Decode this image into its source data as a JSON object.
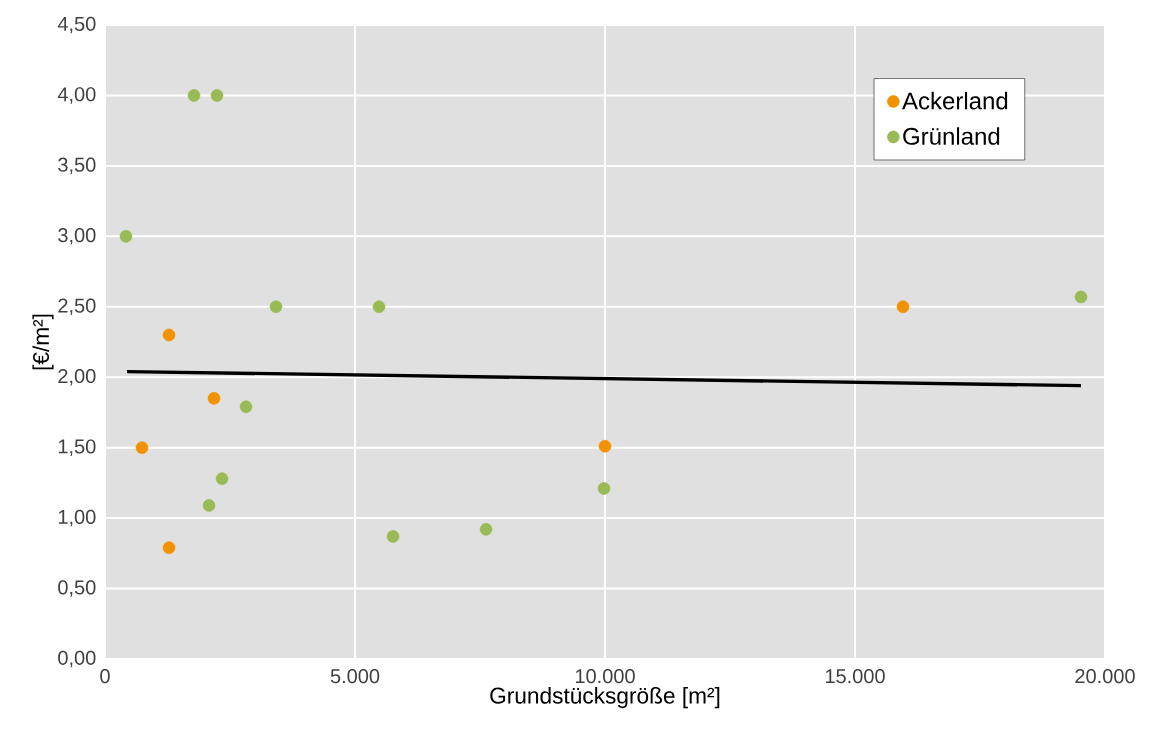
{
  "chart_data": {
    "type": "scatter",
    "xlabel": "Grundstücksgröße [m²]",
    "ylabel": "[€/m²]",
    "xlim": [
      0,
      20000
    ],
    "ylim": [
      0,
      4.5
    ],
    "xticks": [
      0,
      {
        "value": 5000,
        "label": "5.000"
      },
      {
        "value": 10000,
        "label": "10.000"
      },
      {
        "value": 15000,
        "label": "15.000"
      },
      {
        "value": 20000,
        "label": "20.000"
      }
    ],
    "yticks": [
      {
        "value": 0,
        "label": "0,00"
      },
      {
        "value": 0.5,
        "label": "0,50"
      },
      {
        "value": 1,
        "label": "1,00"
      },
      {
        "value": 1.5,
        "label": "1,50"
      },
      {
        "value": 2,
        "label": "2,00"
      },
      {
        "value": 2.5,
        "label": "2,50"
      },
      {
        "value": 3,
        "label": "3,00"
      },
      {
        "value": 3.5,
        "label": "3,50"
      },
      {
        "value": 4,
        "label": "4,00"
      },
      {
        "value": 4.5,
        "label": "4,50"
      }
    ],
    "grid": true,
    "legend": "top right",
    "series": [
      {
        "name": "Ackerland",
        "color": "#f39200",
        "marker": "circle",
        "x": [
          1280,
          740,
          2180,
          1280,
          10000,
          15960
        ],
        "values": [
          2.3,
          1.5,
          1.85,
          0.79,
          1.51,
          2.5
        ]
      },
      {
        "name": "Grünland",
        "color": "#99bb55",
        "marker": "circle",
        "x": [
          1780,
          2240,
          420,
          3420,
          5480,
          2820,
          2340,
          2080,
          5760,
          7620,
          9980,
          19520
        ],
        "values": [
          4.0,
          4.0,
          3.0,
          2.5,
          2.5,
          1.79,
          1.28,
          1.09,
          0.87,
          0.92,
          1.21,
          2.57
        ]
      },
      {
        "type": "line",
        "marker": "none",
        "color": "#000000",
        "x": [
          440,
          19520
        ],
        "values": [
          2.04,
          1.94
        ]
      }
    ]
  }
}
